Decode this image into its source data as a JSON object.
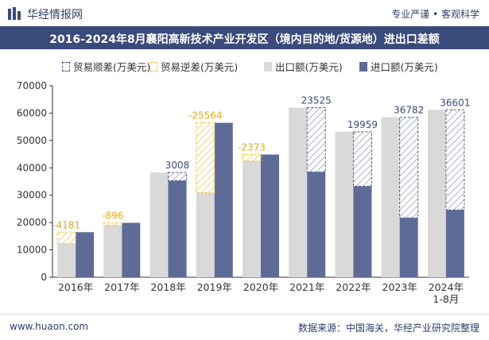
{
  "header": {
    "brand": "华经情报网",
    "tags": "专业严谨 • 客观科学",
    "title": "2016-2024年8月襄阳高新技术产业开发区（境内目的地/货源地）进出口差额"
  },
  "footer": {
    "site": "www.huaon.com",
    "source": "数据来源：中国海关，华经产业研究院整理"
  },
  "legend": {
    "surplus": "贸易顺差(万美元)",
    "deficit": "贸易逆差(万美元)",
    "export": "出口额(万美元)",
    "import": "进口额(万美元)"
  },
  "colors": {
    "export": "#d9d9d9",
    "import": "#5f6b97",
    "surplus_border": "#4a5a8a",
    "deficit_border": "#f5c242",
    "deficit_label": "#e6a817",
    "surplus_label": "#3a4a7b",
    "header_bg": "#3a4a7b"
  },
  "chart_data": {
    "type": "bar",
    "categories": [
      "2016年",
      "2017年",
      "2018年",
      "2019年",
      "2020年",
      "2021年",
      "2022年",
      "2023年",
      "2024年\n1-8月"
    ],
    "series": [
      {
        "name": "出口额(万美元)",
        "values": [
          12300,
          19000,
          38300,
          30900,
          42500,
          62000,
          53200,
          58500,
          61200
        ]
      },
      {
        "name": "进口额(万美元)",
        "values": [
          16481,
          19896,
          35292,
          56464,
          44873,
          38475,
          33241,
          21718,
          24599
        ]
      }
    ],
    "balance_labels": [
      "-4181",
      "-896",
      "3008",
      "-25564",
      "-2373",
      "23525",
      "19959",
      "36782",
      "36601"
    ],
    "balance_values": [
      -4181,
      -896,
      3008,
      -25564,
      -2373,
      23525,
      19959,
      36782,
      36601
    ],
    "y_ticks": [
      "0",
      "10000",
      "20000",
      "30000",
      "40000",
      "50000",
      "60000",
      "70000"
    ],
    "ylim": [
      0,
      70000
    ],
    "title": "2016-2024年8月襄阳高新技术产业开发区（境内目的地/货源地）进出口差额"
  }
}
